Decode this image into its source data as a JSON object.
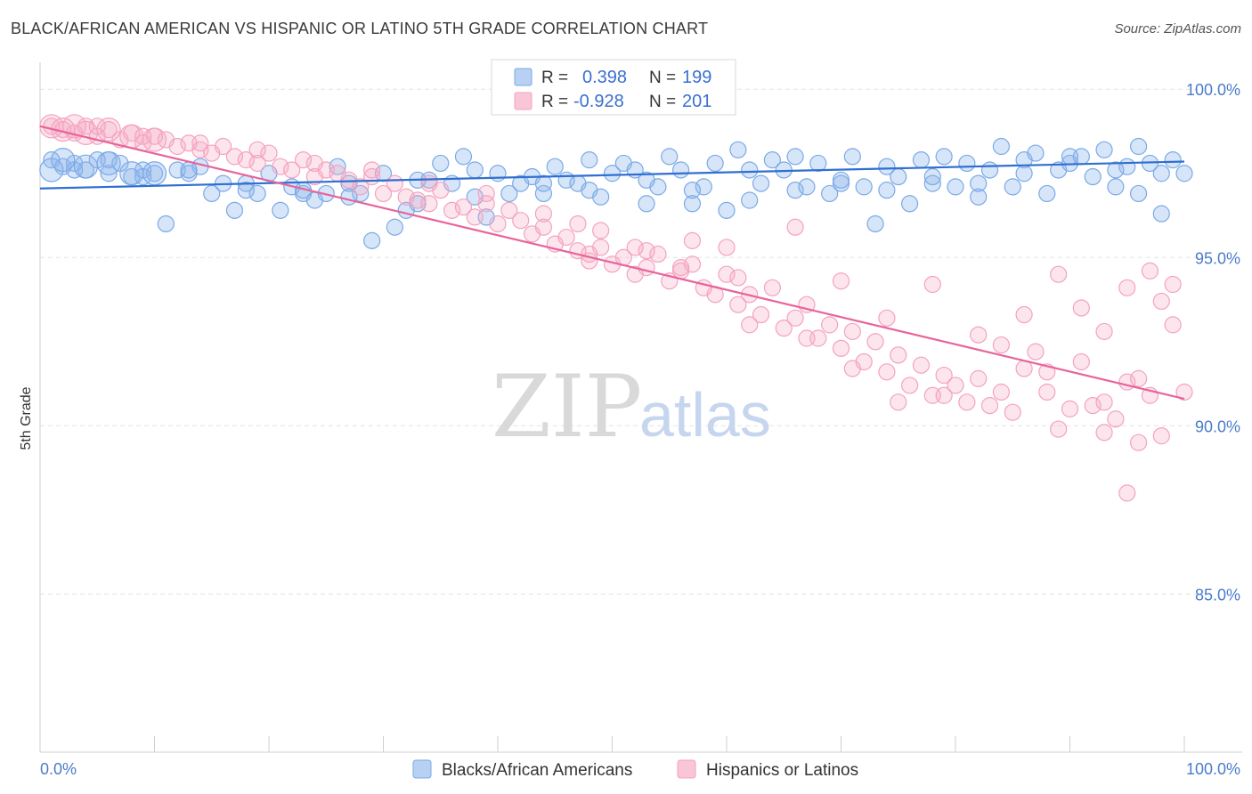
{
  "title": "BLACK/AFRICAN AMERICAN VS HISPANIC OR LATINO 5TH GRADE CORRELATION CHART",
  "source": "Source: ZipAtlas.com",
  "watermark": {
    "zip": "ZIP",
    "atlas": "atlas"
  },
  "chart_data": {
    "type": "scatter",
    "ylabel": "5th Grade",
    "x_ticks": [
      "0.0%",
      "100.0%"
    ],
    "y_ticks": [
      "100.0%",
      "95.0%",
      "90.0%",
      "85.0%"
    ],
    "xlim": [
      0,
      100
    ],
    "ylim": [
      80.3,
      100.8
    ],
    "grid": true,
    "legend_placement": "top-center",
    "series": [
      {
        "name": "Blacks/African Americans",
        "color": "#7aaae8",
        "line_color": "#2f6fd1",
        "R": "0.398",
        "N": "199",
        "trend": {
          "x": [
            0,
            100
          ],
          "y": [
            97.05,
            97.85
          ]
        },
        "points": [
          [
            1,
            97.9
          ],
          [
            2,
            97.7
          ],
          [
            3,
            97.8
          ],
          [
            4,
            97.6
          ],
          [
            5,
            97.9
          ],
          [
            6,
            97.5
          ],
          [
            7,
            97.8
          ],
          [
            8,
            97.4
          ],
          [
            9,
            97.6
          ],
          [
            10,
            97.5
          ],
          [
            11,
            96.0
          ],
          [
            12,
            97.6
          ],
          [
            13,
            97.5
          ],
          [
            14,
            97.7
          ],
          [
            15,
            96.9
          ],
          [
            16,
            97.2
          ],
          [
            17,
            96.4
          ],
          [
            18,
            97.2
          ],
          [
            19,
            96.9
          ],
          [
            20,
            97.5
          ],
          [
            21,
            96.4
          ],
          [
            22,
            97.1
          ],
          [
            23,
            96.9
          ],
          [
            24,
            96.7
          ],
          [
            25,
            96.9
          ],
          [
            26,
            97.7
          ],
          [
            27,
            97.2
          ],
          [
            28,
            96.9
          ],
          [
            29,
            95.5
          ],
          [
            30,
            97.5
          ],
          [
            31,
            95.9
          ],
          [
            32,
            96.4
          ],
          [
            33,
            97.3
          ],
          [
            34,
            97.3
          ],
          [
            35,
            97.8
          ],
          [
            36,
            97.2
          ],
          [
            37,
            98.0
          ],
          [
            38,
            96.8
          ],
          [
            39,
            96.2
          ],
          [
            40,
            97.5
          ],
          [
            41,
            96.9
          ],
          [
            42,
            97.2
          ],
          [
            43,
            97.4
          ],
          [
            44,
            96.9
          ],
          [
            45,
            97.7
          ],
          [
            46,
            97.3
          ],
          [
            47,
            97.2
          ],
          [
            48,
            97.0
          ],
          [
            49,
            96.8
          ],
          [
            50,
            97.5
          ],
          [
            51,
            97.8
          ],
          [
            52,
            97.6
          ],
          [
            53,
            96.6
          ],
          [
            54,
            97.1
          ],
          [
            55,
            98.0
          ],
          [
            56,
            97.6
          ],
          [
            57,
            96.6
          ],
          [
            58,
            97.1
          ],
          [
            59,
            97.8
          ],
          [
            60,
            96.4
          ],
          [
            61,
            98.2
          ],
          [
            62,
            96.7
          ],
          [
            63,
            97.2
          ],
          [
            64,
            97.9
          ],
          [
            65,
            97.6
          ],
          [
            66,
            97.0
          ],
          [
            67,
            97.1
          ],
          [
            68,
            97.8
          ],
          [
            69,
            96.9
          ],
          [
            70,
            97.2
          ],
          [
            71,
            98.0
          ],
          [
            72,
            97.1
          ],
          [
            73,
            96.0
          ],
          [
            74,
            97.0
          ],
          [
            75,
            97.4
          ],
          [
            76,
            96.6
          ],
          [
            77,
            97.9
          ],
          [
            78,
            97.2
          ],
          [
            79,
            98.0
          ],
          [
            80,
            97.1
          ],
          [
            81,
            97.8
          ],
          [
            82,
            96.8
          ],
          [
            83,
            97.6
          ],
          [
            84,
            98.3
          ],
          [
            85,
            97.1
          ],
          [
            86,
            97.9
          ],
          [
            87,
            98.1
          ],
          [
            88,
            96.9
          ],
          [
            89,
            97.6
          ],
          [
            90,
            97.8
          ],
          [
            91,
            98.0
          ],
          [
            92,
            97.4
          ],
          [
            93,
            98.2
          ],
          [
            94,
            97.1
          ],
          [
            95,
            97.7
          ],
          [
            96,
            98.3
          ],
          [
            97,
            97.8
          ],
          [
            98,
            97.5
          ],
          [
            99,
            97.9
          ],
          [
            100,
            97.5
          ],
          [
            3,
            97.6
          ],
          [
            6,
            97.9
          ],
          [
            9,
            97.4
          ],
          [
            13,
            97.6
          ],
          [
            18,
            97.0
          ],
          [
            23,
            97.0
          ],
          [
            27,
            96.8
          ],
          [
            33,
            96.6
          ],
          [
            38,
            97.6
          ],
          [
            44,
            97.2
          ],
          [
            48,
            97.9
          ],
          [
            53,
            97.3
          ],
          [
            57,
            97.0
          ],
          [
            62,
            97.6
          ],
          [
            66,
            98.0
          ],
          [
            70,
            97.3
          ],
          [
            74,
            97.7
          ],
          [
            78,
            97.4
          ],
          [
            82,
            97.2
          ],
          [
            86,
            97.5
          ],
          [
            90,
            98.0
          ],
          [
            94,
            97.6
          ],
          [
            96,
            96.9
          ],
          [
            98,
            96.3
          ]
        ],
        "big_points": [
          [
            1,
            97.6
          ],
          [
            2,
            97.9
          ],
          [
            4,
            97.7
          ],
          [
            6,
            97.8
          ],
          [
            8,
            97.5
          ],
          [
            10,
            97.5
          ]
        ]
      },
      {
        "name": "Hispanics or Latinos",
        "color": "#f4a3bd",
        "line_color": "#e8649a",
        "R": "-0.928",
        "N": "201",
        "trend": {
          "x": [
            0,
            100
          ],
          "y": [
            98.9,
            90.8
          ]
        },
        "points": [
          [
            1,
            98.9
          ],
          [
            2,
            98.8
          ],
          [
            3,
            98.7
          ],
          [
            4,
            98.9
          ],
          [
            5,
            98.6
          ],
          [
            6,
            98.8
          ],
          [
            7,
            98.5
          ],
          [
            8,
            98.7
          ],
          [
            9,
            98.4
          ],
          [
            10,
            98.6
          ],
          [
            11,
            98.5
          ],
          [
            12,
            98.3
          ],
          [
            13,
            98.4
          ],
          [
            14,
            98.2
          ],
          [
            15,
            98.1
          ],
          [
            16,
            98.3
          ],
          [
            17,
            98.0
          ],
          [
            18,
            97.9
          ],
          [
            19,
            97.8
          ],
          [
            20,
            98.1
          ],
          [
            21,
            97.7
          ],
          [
            22,
            97.6
          ],
          [
            23,
            97.9
          ],
          [
            24,
            97.4
          ],
          [
            25,
            97.6
          ],
          [
            26,
            97.5
          ],
          [
            27,
            97.3
          ],
          [
            28,
            97.1
          ],
          [
            29,
            97.4
          ],
          [
            30,
            96.9
          ],
          [
            31,
            97.2
          ],
          [
            32,
            96.8
          ],
          [
            33,
            96.7
          ],
          [
            34,
            96.6
          ],
          [
            35,
            97.0
          ],
          [
            36,
            96.4
          ],
          [
            37,
            96.5
          ],
          [
            38,
            96.2
          ],
          [
            39,
            96.6
          ],
          [
            40,
            96.0
          ],
          [
            41,
            96.4
          ],
          [
            42,
            96.1
          ],
          [
            43,
            95.7
          ],
          [
            44,
            95.9
          ],
          [
            45,
            95.4
          ],
          [
            46,
            95.6
          ],
          [
            47,
            95.2
          ],
          [
            48,
            94.9
          ],
          [
            49,
            95.3
          ],
          [
            50,
            94.8
          ],
          [
            51,
            95.0
          ],
          [
            52,
            94.5
          ],
          [
            53,
            94.7
          ],
          [
            54,
            95.1
          ],
          [
            55,
            94.3
          ],
          [
            56,
            94.6
          ],
          [
            57,
            94.8
          ],
          [
            58,
            94.1
          ],
          [
            59,
            93.9
          ],
          [
            60,
            94.5
          ],
          [
            61,
            93.6
          ],
          [
            62,
            93.9
          ],
          [
            63,
            93.3
          ],
          [
            64,
            94.1
          ],
          [
            65,
            92.9
          ],
          [
            66,
            93.2
          ],
          [
            67,
            93.6
          ],
          [
            68,
            92.6
          ],
          [
            69,
            93.0
          ],
          [
            70,
            92.3
          ],
          [
            71,
            92.8
          ],
          [
            72,
            91.9
          ],
          [
            73,
            92.5
          ],
          [
            74,
            91.6
          ],
          [
            75,
            92.1
          ],
          [
            76,
            91.2
          ],
          [
            77,
            91.8
          ],
          [
            78,
            90.9
          ],
          [
            79,
            91.5
          ],
          [
            80,
            91.2
          ],
          [
            81,
            90.7
          ],
          [
            82,
            91.4
          ],
          [
            83,
            90.6
          ],
          [
            84,
            91.0
          ],
          [
            85,
            90.4
          ],
          [
            86,
            91.7
          ],
          [
            87,
            92.2
          ],
          [
            88,
            91.0
          ],
          [
            89,
            89.9
          ],
          [
            90,
            90.5
          ],
          [
            91,
            91.9
          ],
          [
            92,
            90.6
          ],
          [
            93,
            89.8
          ],
          [
            94,
            90.2
          ],
          [
            95,
            91.3
          ],
          [
            96,
            89.5
          ],
          [
            97,
            90.9
          ],
          [
            98,
            89.7
          ],
          [
            99,
            93.0
          ],
          [
            100,
            91.0
          ],
          [
            5,
            98.9
          ],
          [
            9,
            98.6
          ],
          [
            14,
            98.4
          ],
          [
            19,
            98.2
          ],
          [
            24,
            97.8
          ],
          [
            29,
            97.6
          ],
          [
            34,
            97.2
          ],
          [
            39,
            96.9
          ],
          [
            44,
            96.3
          ],
          [
            47,
            96.0
          ],
          [
            49,
            95.8
          ],
          [
            53,
            95.2
          ],
          [
            57,
            95.5
          ],
          [
            61,
            94.4
          ],
          [
            66,
            95.9
          ],
          [
            70,
            94.3
          ],
          [
            74,
            93.2
          ],
          [
            78,
            94.2
          ],
          [
            82,
            92.7
          ],
          [
            86,
            93.3
          ],
          [
            89,
            94.5
          ],
          [
            91,
            93.5
          ],
          [
            93,
            92.8
          ],
          [
            95,
            94.1
          ],
          [
            97,
            94.6
          ],
          [
            99,
            94.2
          ],
          [
            62,
            93.0
          ],
          [
            67,
            92.6
          ],
          [
            71,
            91.7
          ],
          [
            75,
            90.7
          ],
          [
            79,
            90.9
          ],
          [
            84,
            92.4
          ],
          [
            88,
            91.6
          ],
          [
            93,
            90.7
          ],
          [
            96,
            91.4
          ],
          [
            98,
            93.7
          ],
          [
            95,
            88.0
          ],
          [
            60,
            95.3
          ],
          [
            56,
            94.7
          ],
          [
            52,
            95.3
          ],
          [
            48,
            95.1
          ]
        ],
        "big_points": [
          [
            1,
            98.9
          ],
          [
            2,
            98.8
          ],
          [
            3,
            98.9
          ],
          [
            4,
            98.7
          ],
          [
            6,
            98.8
          ],
          [
            8,
            98.6
          ],
          [
            10,
            98.5
          ]
        ]
      }
    ]
  }
}
